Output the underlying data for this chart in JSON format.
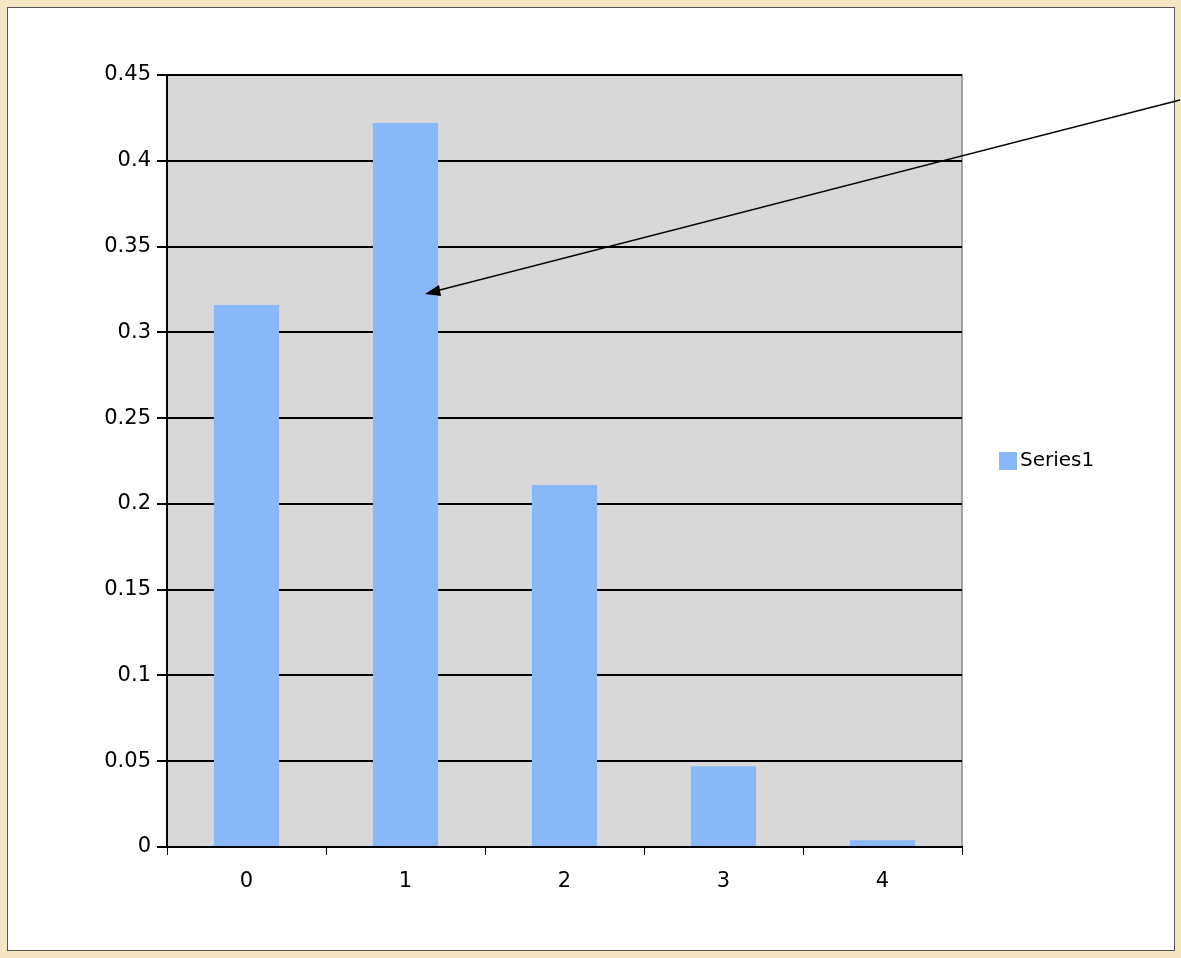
{
  "chart_data": {
    "type": "bar",
    "categories": [
      "0",
      "1",
      "2",
      "3",
      "4"
    ],
    "series": [
      {
        "name": "Series1",
        "color": "#88b8f8",
        "values": [
          0.316,
          0.422,
          0.211,
          0.047,
          0.004
        ]
      }
    ],
    "ylim": [
      0,
      0.45
    ],
    "yticks": [
      0,
      0.05,
      0.1,
      0.15,
      0.2,
      0.25,
      0.3,
      0.35,
      0.4,
      0.45
    ],
    "grid": "y",
    "legend": "right"
  }
}
